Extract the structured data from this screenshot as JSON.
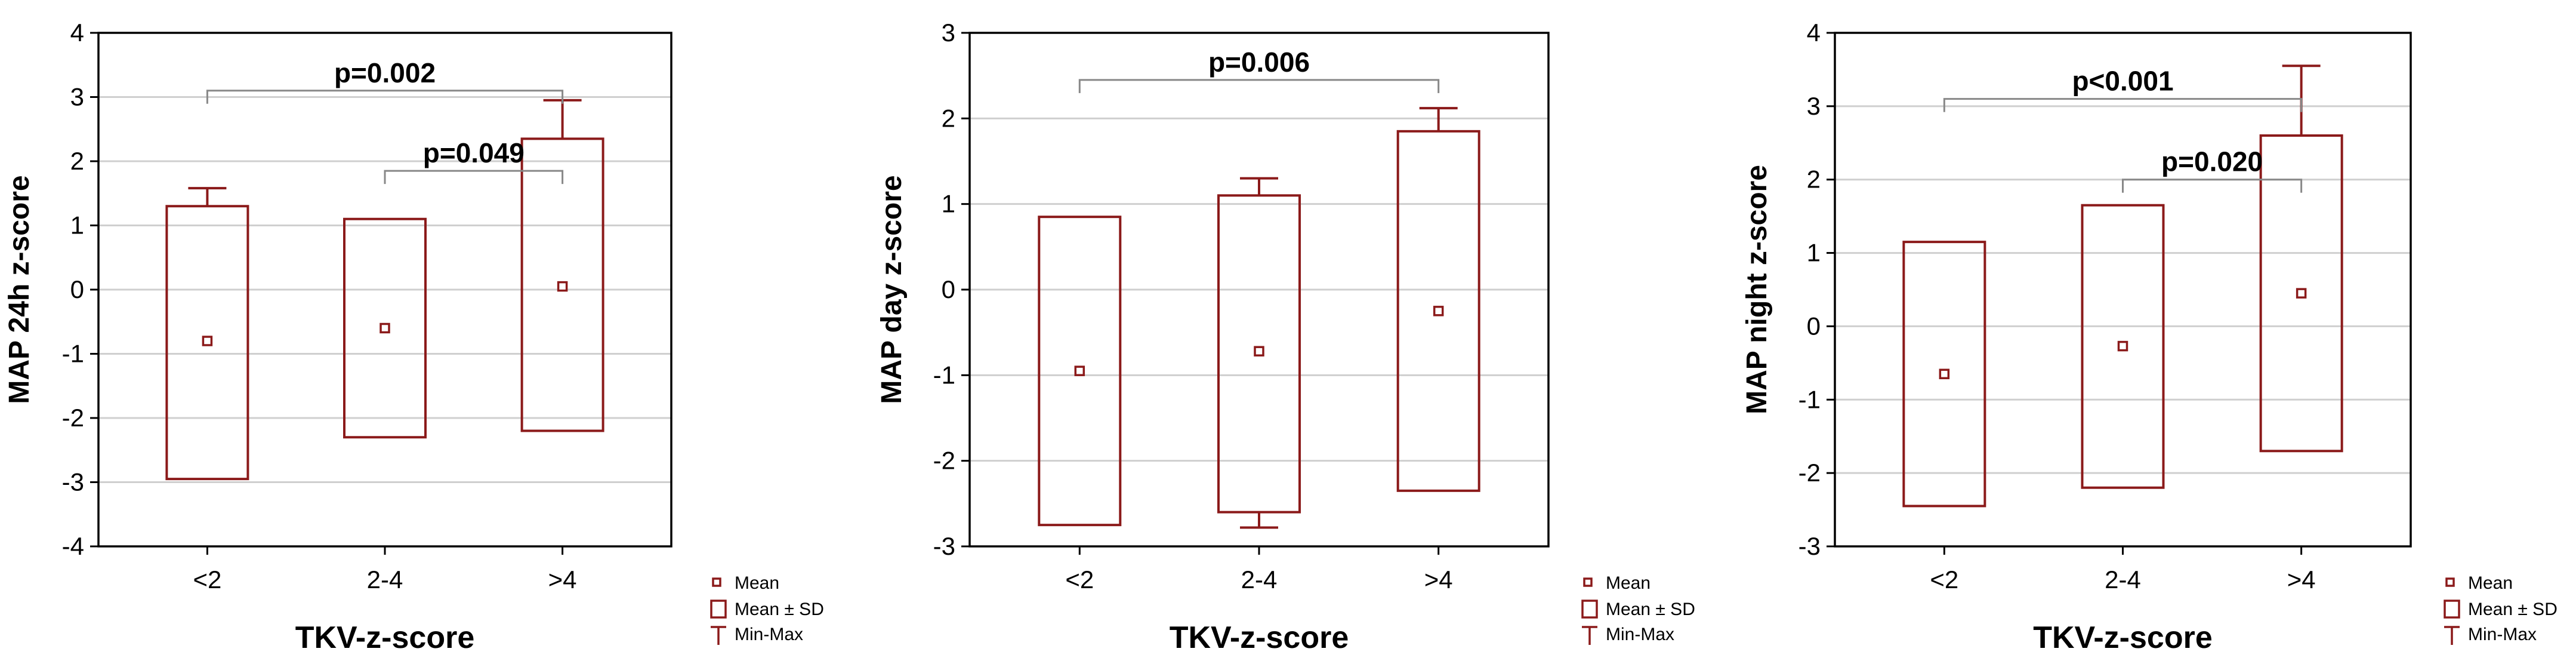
{
  "colors": {
    "box": "#8b1a1a",
    "grid": "#cfcfcf",
    "axis": "#000000",
    "bracket": "#888888"
  },
  "legend": {
    "mean": "Mean",
    "sd": "Mean ± SD",
    "minmax": "Min-Max"
  },
  "chart_data": [
    {
      "type": "box",
      "xlabel": "TKV-z-score",
      "ylabel": "MAP 24h z-score",
      "ylim": [
        -4,
        4
      ],
      "yticks": [
        "-4",
        "-3",
        "-2",
        "-1",
        "0",
        "1",
        "2",
        "3",
        "4"
      ],
      "categories": [
        "<2",
        "2-4",
        ">4"
      ],
      "mean": [
        -0.8,
        -0.6,
        0.05
      ],
      "sd_low": [
        -2.95,
        -2.3,
        -2.2
      ],
      "sd_high": [
        1.3,
        1.1,
        2.35
      ],
      "min": [
        null,
        null,
        null
      ],
      "max": [
        1.58,
        null,
        2.95
      ],
      "comparisons": [
        {
          "from": 0,
          "to": 2,
          "y": 3.1,
          "label": "p=0.002"
        },
        {
          "from": 1,
          "to": 2,
          "y": 1.85,
          "label": "p=0.049"
        }
      ]
    },
    {
      "type": "box",
      "xlabel": "TKV-z-score",
      "ylabel": "MAP day z-score",
      "ylim": [
        -3,
        3
      ],
      "yticks": [
        "-3",
        "-2",
        "-1",
        "0",
        "1",
        "2",
        "3"
      ],
      "categories": [
        "<2",
        "2-4",
        ">4"
      ],
      "mean": [
        -0.95,
        -0.72,
        -0.25
      ],
      "sd_low": [
        -2.75,
        -2.6,
        -2.35
      ],
      "sd_high": [
        0.85,
        1.1,
        1.85
      ],
      "min": [
        null,
        -2.78,
        null
      ],
      "max": [
        null,
        1.3,
        2.12
      ],
      "comparisons": [
        {
          "from": 0,
          "to": 2,
          "y": 2.45,
          "label": "p=0.006"
        }
      ]
    },
    {
      "type": "box",
      "xlabel": "TKV-z-score",
      "ylabel": "MAP night z-score",
      "ylim": [
        -3,
        4
      ],
      "yticks": [
        "-3",
        "-2",
        "-1",
        "0",
        "1",
        "2",
        "3",
        "4"
      ],
      "categories": [
        "<2",
        "2-4",
        ">4"
      ],
      "mean": [
        -0.65,
        -0.27,
        0.45
      ],
      "sd_low": [
        -2.45,
        -2.2,
        -1.7
      ],
      "sd_high": [
        1.15,
        1.65,
        2.6
      ],
      "min": [
        null,
        null,
        null
      ],
      "max": [
        null,
        null,
        3.55
      ],
      "comparisons": [
        {
          "from": 0,
          "to": 2,
          "y": 3.1,
          "label": "p<0.001"
        },
        {
          "from": 1,
          "to": 2,
          "y": 2.0,
          "label": "p=0.020"
        }
      ]
    }
  ]
}
